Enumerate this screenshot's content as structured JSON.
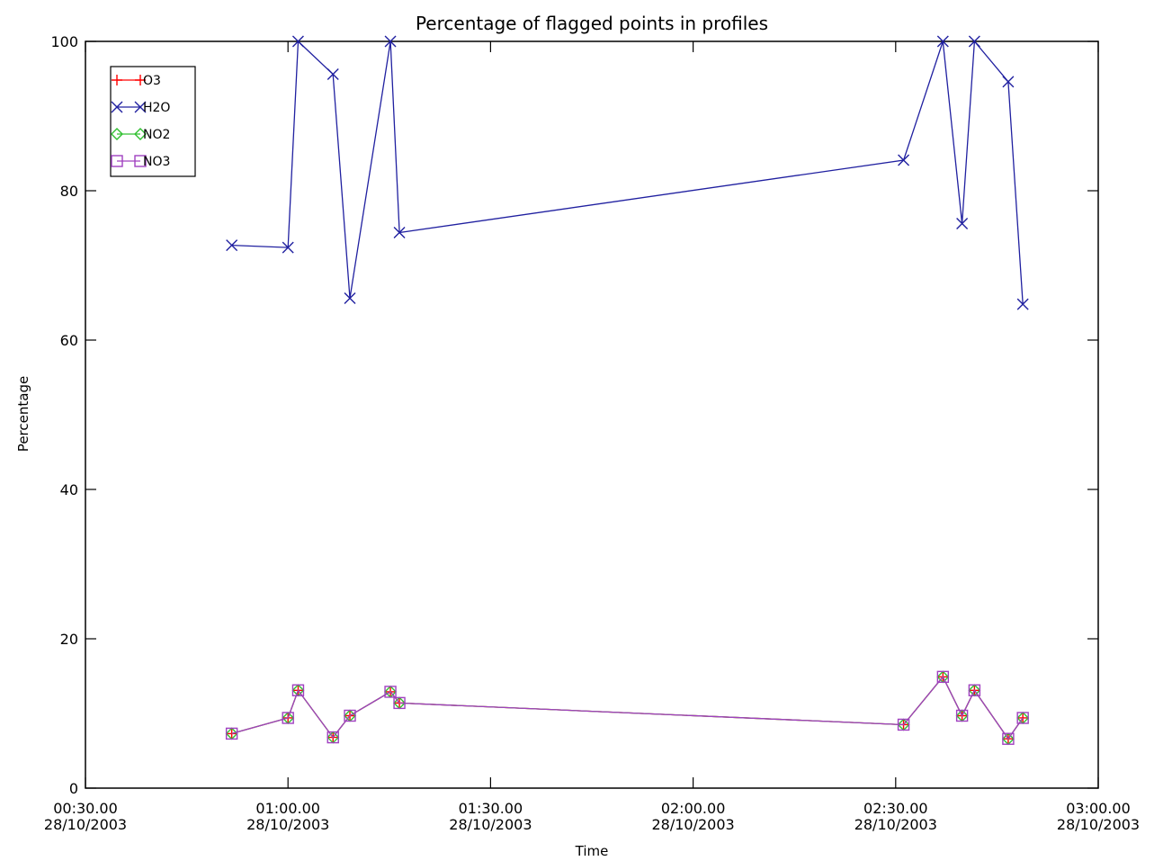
{
  "chart_data": {
    "type": "line",
    "title": "Percentage of flagged points in profiles",
    "xlabel": "Time",
    "ylabel": "Percentage",
    "ylim": [
      0,
      100
    ],
    "xlim": [
      "00:30.00",
      "03:00.00"
    ],
    "y_ticks": [
      "0",
      "20",
      "40",
      "60",
      "80",
      "100"
    ],
    "x_ticks": [
      {
        "time": "00:30.00",
        "date": "28/10/2003"
      },
      {
        "time": "01:00.00",
        "date": "28/10/2003"
      },
      {
        "time": "01:30.00",
        "date": "28/10/2003"
      },
      {
        "time": "02:00.00",
        "date": "28/10/2003"
      },
      {
        "time": "02:30.00",
        "date": "28/10/2003"
      },
      {
        "time": "03:00.00",
        "date": "28/10/2003"
      }
    ],
    "grid": false,
    "legend_position": "top-left",
    "x": [
      "00:51:40",
      "01:00:00",
      "01:01:30",
      "01:06:40",
      "01:09:10",
      "01:15:10",
      "01:16:30",
      "02:31:10",
      "02:37:00",
      "02:39:50",
      "02:41:40",
      "02:46:40",
      "02:48:50"
    ],
    "series": [
      {
        "name": "O3",
        "color": "#ff0000",
        "marker": "plus",
        "values": [
          7.3,
          9.4,
          13.1,
          6.8,
          9.7,
          12.9,
          11.4,
          8.5,
          14.9,
          9.7,
          13.1,
          6.6,
          9.4
        ]
      },
      {
        "name": "H2O",
        "color": "#2020a0",
        "marker": "cross",
        "values": [
          72.7,
          72.4,
          100,
          95.6,
          65.6,
          100,
          74.4,
          84.1,
          100,
          75.6,
          100,
          94.6,
          64.8
        ]
      },
      {
        "name": "NO2",
        "color": "#30c030",
        "marker": "diamond",
        "values": [
          7.3,
          9.4,
          13.1,
          6.8,
          9.7,
          12.9,
          11.4,
          8.5,
          14.9,
          9.7,
          13.1,
          6.6,
          9.4
        ]
      },
      {
        "name": "NO3",
        "color": "#a040c0",
        "marker": "square",
        "values": [
          7.3,
          9.4,
          13.1,
          6.8,
          9.7,
          12.9,
          11.4,
          8.5,
          14.9,
          9.7,
          13.1,
          6.6,
          9.4
        ]
      }
    ]
  }
}
